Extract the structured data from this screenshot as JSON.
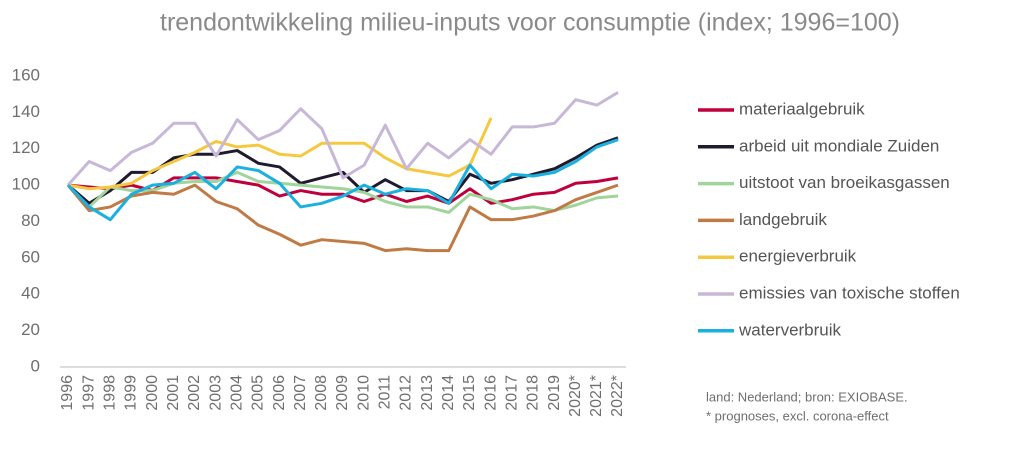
{
  "chart_data": {
    "type": "line",
    "title": "trendontwikkeling milieu-inputs voor consumptie (index; 1996=100)",
    "categories": [
      "1996",
      "1997",
      "1998",
      "1999",
      "2000",
      "2001",
      "2002",
      "2003",
      "2004",
      "2005",
      "2006",
      "2007",
      "2008",
      "2009",
      "2010",
      "2011",
      "2012",
      "2013",
      "2014",
      "2015",
      "2016",
      "2017",
      "2018",
      "2019",
      "2020*",
      "2021*",
      "2022*"
    ],
    "series": [
      {
        "name": "materiaalgebruik",
        "color": "#c0003c",
        "values": [
          100,
          99,
          98,
          100,
          97,
          104,
          104,
          104,
          102,
          100,
          94,
          97,
          95,
          95,
          91,
          95,
          91,
          94,
          90,
          98,
          90,
          92,
          95,
          96,
          101,
          102,
          104
        ]
      },
      {
        "name": "arbeid uit mondiale Zuiden",
        "color": "#1f1a2e",
        "values": [
          100,
          90,
          97,
          107,
          107,
          115,
          117,
          117,
          119,
          112,
          110,
          101,
          104,
          107,
          96,
          103,
          97,
          97,
          91,
          106,
          101,
          103,
          106,
          109,
          115,
          122,
          126
        ]
      },
      {
        "name": "uitstoot van broeikasgassen",
        "color": "#9fd49a",
        "values": [
          100,
          88,
          99,
          97,
          97,
          101,
          102,
          102,
          107,
          102,
          101,
          100,
          99,
          98,
          96,
          91,
          88,
          88,
          85,
          95,
          92,
          87,
          88,
          86,
          89,
          93,
          94
        ]
      },
      {
        "name": "landgebruik",
        "color": "#c07a45",
        "values": [
          100,
          86,
          88,
          94,
          96,
          95,
          100,
          91,
          87,
          78,
          73,
          67,
          70,
          69,
          68,
          64,
          65,
          64,
          64,
          88,
          81,
          81,
          83,
          86,
          92,
          96,
          100
        ]
      },
      {
        "name": "energieverbruik",
        "color": "#f5c842",
        "values": [
          100,
          98,
          99,
          101,
          108,
          113,
          118,
          124,
          121,
          122,
          117,
          116,
          123,
          123,
          123,
          115,
          109,
          107,
          105,
          111,
          137,
          null,
          null,
          null,
          null,
          null,
          null
        ]
      },
      {
        "name": "emissies van toxische stoffen",
        "color": "#c8b8d8",
        "values": [
          100,
          113,
          108,
          118,
          123,
          134,
          134,
          116,
          136,
          125,
          130,
          142,
          131,
          104,
          111,
          133,
          109,
          123,
          115,
          125,
          117,
          132,
          132,
          134,
          147,
          144,
          151
        ]
      },
      {
        "name": "waterverbruik",
        "color": "#1ab0e0",
        "values": [
          100,
          88,
          81,
          95,
          100,
          101,
          107,
          98,
          110,
          108,
          101,
          88,
          90,
          94,
          100,
          95,
          98,
          97,
          90,
          111,
          98,
          106,
          105,
          107,
          113,
          121,
          125
        ]
      }
    ],
    "ylim": [
      0,
      160
    ],
    "yticks": [
      0,
      20,
      40,
      60,
      80,
      100,
      120,
      140,
      160
    ],
    "annotations": [
      "land: Nederland; bron: EXIOBASE.",
      "* prognoses, excl. corona-effect"
    ]
  }
}
